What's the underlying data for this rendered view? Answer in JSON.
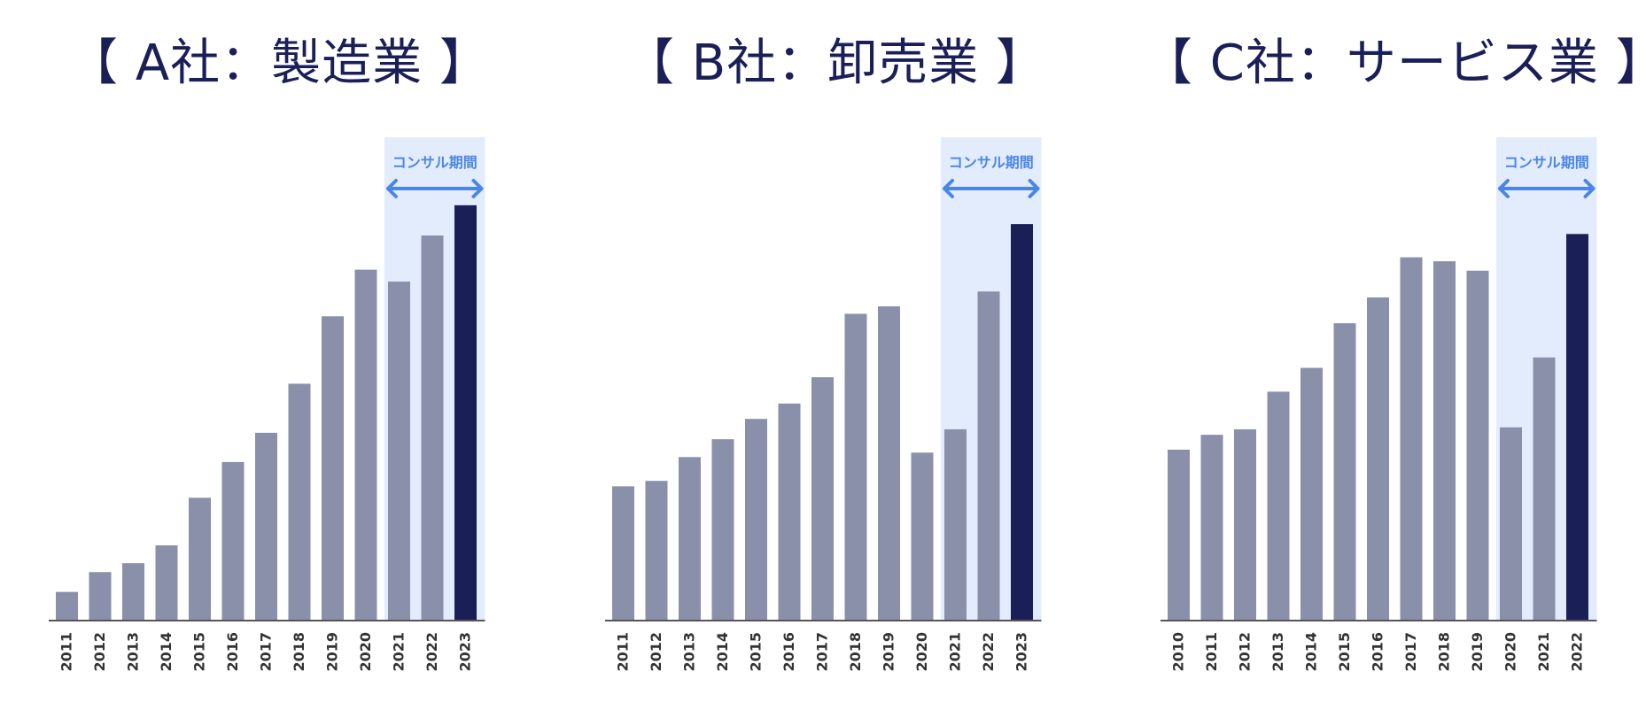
{
  "colors": {
    "bar": "#8a8faa",
    "highlight_bar": "#1b1f57",
    "consult_band": "#e3ecfc",
    "arrow": "#4a86e8",
    "axis": "#555555",
    "tick_text": "#333333",
    "title_text": "#1b1f57"
  },
  "consult_label": "コンサル期間",
  "chart_data": [
    {
      "type": "bar",
      "title": "【 A社：製造業 】",
      "categories": [
        "2011",
        "2012",
        "2013",
        "2014",
        "2015",
        "2016",
        "2017",
        "2018",
        "2019",
        "2020",
        "2021",
        "2022",
        "2023"
      ],
      "values": [
        5.6,
        9.6,
        11.4,
        15.0,
        24.6,
        31.8,
        37.7,
        47.6,
        61.2,
        70.6,
        68.2,
        77.5,
        83.6
      ],
      "highlight_category": "2023",
      "consult_period": [
        "2021",
        "2023"
      ],
      "consult_label": "コンサル期間",
      "ylim": [
        0,
        100
      ],
      "xlabel": "",
      "ylabel": "",
      "grid": false,
      "legend": "none"
    },
    {
      "type": "bar",
      "title": "【 B社：卸売業 】",
      "categories": [
        "2011",
        "2012",
        "2013",
        "2014",
        "2015",
        "2016",
        "2017",
        "2018",
        "2019",
        "2020",
        "2021",
        "2022",
        "2023"
      ],
      "values": [
        26.9,
        28.0,
        32.8,
        36.4,
        40.5,
        43.6,
        48.9,
        61.7,
        63.2,
        33.7,
        38.4,
        66.2,
        79.8
      ],
      "highlight_category": "2023",
      "consult_period": [
        "2021",
        "2023"
      ],
      "consult_label": "コンサル期間",
      "ylim": [
        0,
        100
      ],
      "xlabel": "",
      "ylabel": "",
      "grid": false,
      "legend": "none"
    },
    {
      "type": "bar",
      "title": "【 C社：サービス業 】",
      "categories": [
        "2010",
        "2011",
        "2012",
        "2013",
        "2014",
        "2015",
        "2016",
        "2017",
        "2018",
        "2019",
        "2020",
        "2021",
        "2022"
      ],
      "values": [
        34.3,
        37.3,
        38.4,
        46.0,
        50.8,
        59.8,
        65.0,
        73.1,
        72.3,
        70.4,
        38.8,
        52.9,
        77.8
      ],
      "highlight_category": "2022",
      "consult_period": [
        "2020",
        "2022"
      ],
      "consult_label": "コンサル期間",
      "ylim": [
        0,
        100
      ],
      "xlabel": "",
      "ylabel": "",
      "grid": false,
      "legend": "none"
    }
  ]
}
